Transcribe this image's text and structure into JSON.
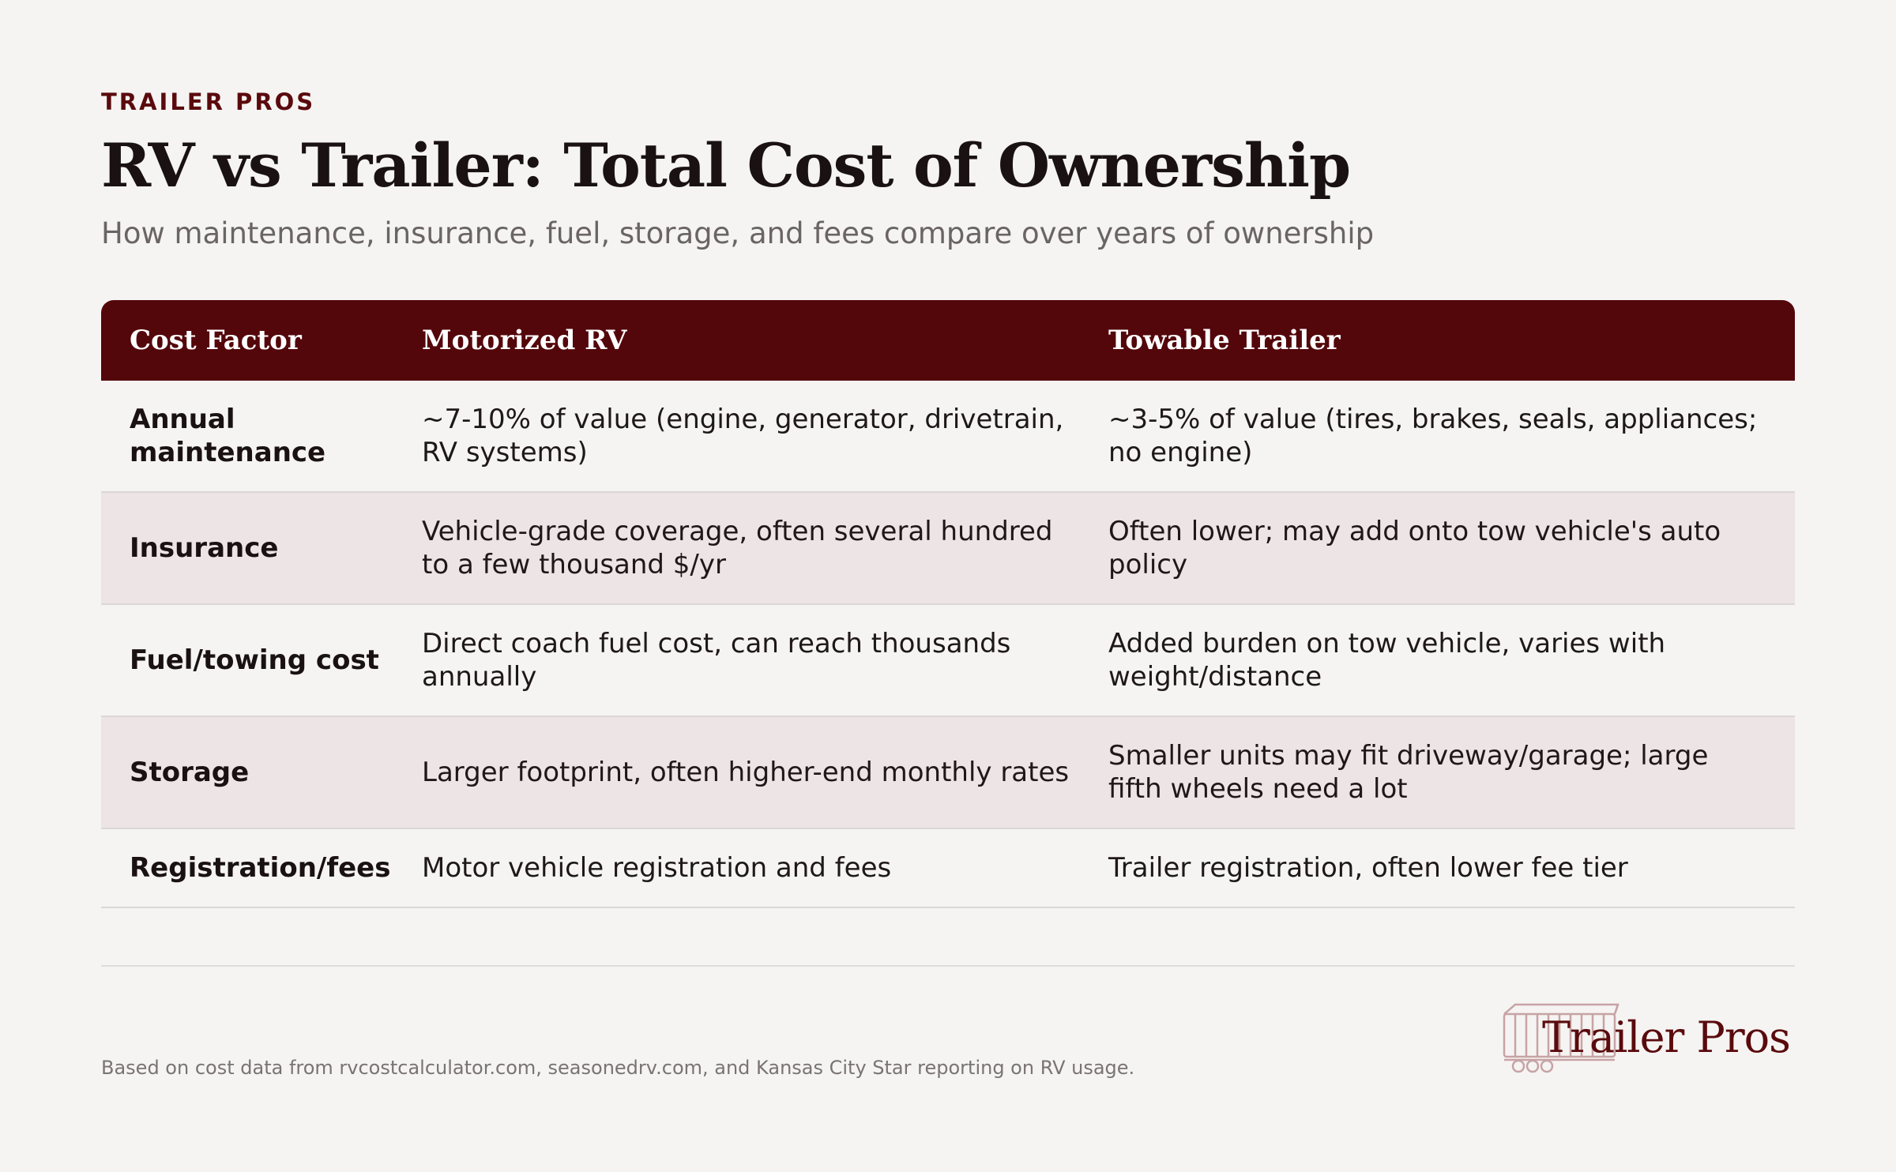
{
  "header": {
    "eyebrow": "TRAILER PROS",
    "title": "RV vs Trailer: Total Cost of Ownership",
    "subtitle": "How maintenance, insurance, fuel, storage, and fees compare over years of ownership"
  },
  "table": {
    "columns": [
      "Cost Factor",
      "Motorized RV",
      "Towable Trailer"
    ],
    "rows": [
      {
        "factor": "Annual maintenance",
        "rv": "~7-10% of value (engine, generator, drivetrain, RV systems)",
        "trailer": "~3-5% of value (tires, brakes, seals, appliances; no engine)"
      },
      {
        "factor": "Insurance",
        "rv": "Vehicle-grade coverage, often several hundred to a few thousand $/yr",
        "trailer": "Often lower; may add onto tow vehicle's auto policy"
      },
      {
        "factor": "Fuel/towing cost",
        "rv": "Direct coach fuel cost, can reach thousands annually",
        "trailer": "Added burden on tow vehicle, varies with weight/distance"
      },
      {
        "factor": "Storage",
        "rv": "Larger footprint, often higher-end monthly rates",
        "trailer": "Smaller units may fit driveway/garage; large fifth wheels need a lot"
      },
      {
        "factor": "Registration/fees",
        "rv": "Motor vehicle registration and fees",
        "trailer": "Trailer registration, often lower fee tier"
      }
    ]
  },
  "footer": {
    "note": "Based on cost data from rvcostcalculator.com, seasonedrv.com, and Kansas City Star reporting on RV usage.",
    "logo_text": "Trailer Pros"
  },
  "colors": {
    "brand": "#54070b",
    "row_alt": "#ede4e5",
    "background": "#f5f4f2"
  }
}
